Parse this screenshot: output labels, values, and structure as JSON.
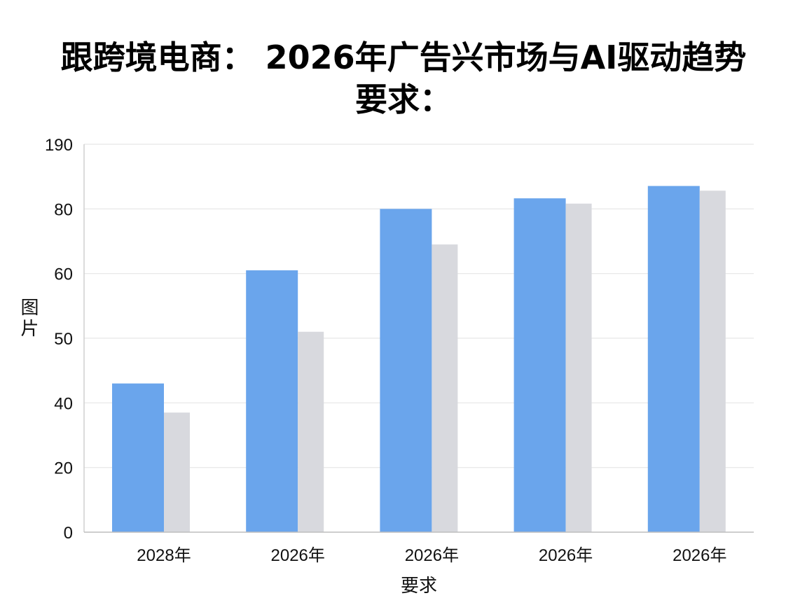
{
  "chart_data": {
    "type": "bar",
    "title_lines": [
      "跟跨境电商： 2026年广告兴市场与AI驱动趋势",
      "要求："
    ],
    "xlabel": "要求",
    "ylabel": "图片",
    "categories": [
      "2028年",
      "2026年",
      "2026年",
      "2026年",
      "2026年"
    ],
    "y_ticks": [
      "0",
      "20",
      "40",
      "50",
      "60",
      "80",
      "190"
    ],
    "series": [
      {
        "values": [
          43,
          61,
          80,
          98,
          119
        ],
        "color": "#6aa5ec"
      },
      {
        "values": [
          37,
          51,
          69,
          89,
          111
        ],
        "color": "#d8d9de"
      }
    ],
    "grid": true
  }
}
